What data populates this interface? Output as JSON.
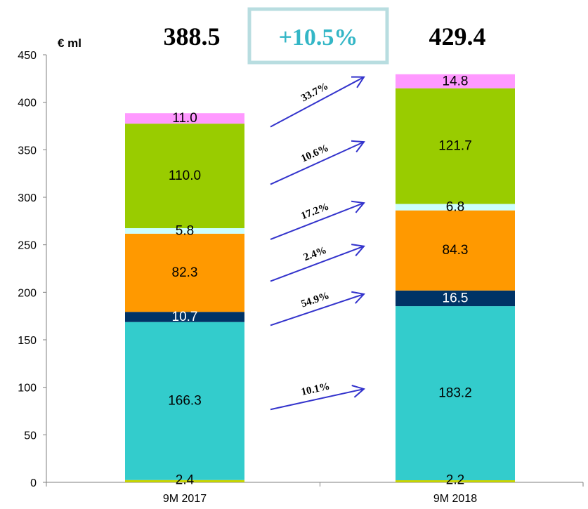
{
  "chart_data": {
    "type": "bar",
    "stacked": true,
    "categories": [
      "9M 2017",
      "9M 2018"
    ],
    "ylabel": "€ ml",
    "ylim": [
      0,
      450
    ],
    "yticks": [
      0,
      50,
      100,
      150,
      200,
      250,
      300,
      350,
      400,
      450
    ],
    "grid": false,
    "series": [
      {
        "values": [
          2.4,
          2.2
        ],
        "labels": [
          "2.4",
          "2.2"
        ],
        "color": "#c8d400",
        "label_color": "#000000"
      },
      {
        "values": [
          166.3,
          183.2
        ],
        "labels": [
          "166.3",
          "183.2"
        ],
        "color": "#33cccc",
        "label_color": "#000000"
      },
      {
        "values": [
          10.7,
          16.5
        ],
        "labels": [
          "10.7",
          "16.5"
        ],
        "color": "#003366",
        "label_color": "#ffffff"
      },
      {
        "values": [
          82.3,
          84.3
        ],
        "labels": [
          "82.3",
          "84.3"
        ],
        "color": "#ff9900",
        "label_color": "#000000"
      },
      {
        "values": [
          5.8,
          6.8
        ],
        "labels": [
          "5.8",
          "6.8"
        ],
        "color": "#ccffff",
        "label_color": "#000000"
      },
      {
        "values": [
          110.0,
          121.7
        ],
        "labels": [
          "110.0",
          "121.7"
        ],
        "color": "#99cc00",
        "label_color": "#000000"
      },
      {
        "values": [
          11.0,
          14.8
        ],
        "labels": [
          "11.0",
          "14.8"
        ],
        "color": "#ff99ff",
        "label_color": "#000000"
      }
    ],
    "totals": [
      "388.5",
      "429.4"
    ],
    "total_growth": "+10.5%",
    "segment_growth": [
      {
        "series_index": 1,
        "label": "10.1%"
      },
      {
        "series_index": 2,
        "label": "54.9%"
      },
      {
        "series_index": 3,
        "label": "2.4%"
      },
      {
        "series_index": 4,
        "label": "17.2%"
      },
      {
        "series_index": 5,
        "label": "10.6%"
      },
      {
        "series_index": 6,
        "label": "33.7%"
      }
    ],
    "arrow_color": "#3333cc",
    "growth_box_color": "#b8dde0"
  }
}
